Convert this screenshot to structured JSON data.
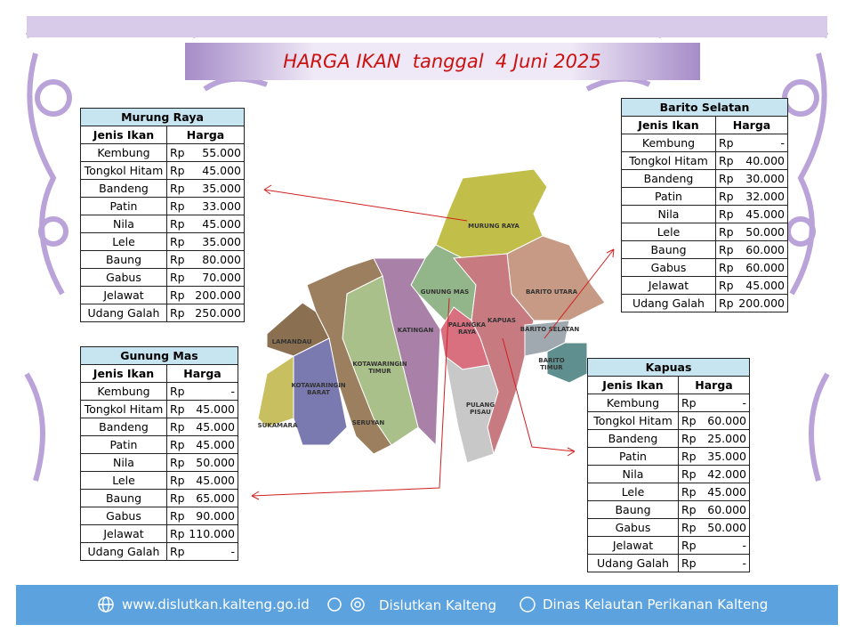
{
  "banner": {
    "title": "HARGA IKAN  tanggal  4 Juni 2025"
  },
  "tables": [
    {
      "title": "Murung Raya",
      "headers": [
        "Jenis Ikan",
        "Harga"
      ],
      "rows": [
        {
          "fish": "Kembung",
          "currency": "Rp",
          "price": "55.000"
        },
        {
          "fish": "Tongkol Hitam",
          "currency": "Rp",
          "price": "45.000"
        },
        {
          "fish": "Bandeng",
          "currency": "Rp",
          "price": "35.000"
        },
        {
          "fish": "Patin",
          "currency": "Rp",
          "price": "33.000"
        },
        {
          "fish": "Nila",
          "currency": "Rp",
          "price": "45.000"
        },
        {
          "fish": "Lele",
          "currency": "Rp",
          "price": "35.000"
        },
        {
          "fish": "Baung",
          "currency": "Rp",
          "price": "80.000"
        },
        {
          "fish": "Gabus",
          "currency": "Rp",
          "price": "70.000"
        },
        {
          "fish": "Jelawat",
          "currency": "Rp",
          "price": "200.000"
        },
        {
          "fish": "Udang Galah",
          "currency": "Rp",
          "price": "250.000"
        }
      ]
    },
    {
      "title": "Gunung Mas",
      "headers": [
        "Jenis Ikan",
        "Harga"
      ],
      "rows": [
        {
          "fish": "Kembung",
          "currency": "Rp",
          "price": "-"
        },
        {
          "fish": "Tongkol Hitam",
          "currency": "Rp",
          "price": "45.000"
        },
        {
          "fish": "Bandeng",
          "currency": "Rp",
          "price": "45.000"
        },
        {
          "fish": "Patin",
          "currency": "Rp",
          "price": "45.000"
        },
        {
          "fish": "Nila",
          "currency": "Rp",
          "price": "50.000"
        },
        {
          "fish": "Lele",
          "currency": "Rp",
          "price": "45.000"
        },
        {
          "fish": "Baung",
          "currency": "Rp",
          "price": "65.000"
        },
        {
          "fish": "Gabus",
          "currency": "Rp",
          "price": "90.000"
        },
        {
          "fish": "Jelawat",
          "currency": "Rp",
          "price": "110.000"
        },
        {
          "fish": "Udang Galah",
          "currency": "Rp",
          "price": "-"
        }
      ]
    },
    {
      "title": "Barito Selatan",
      "headers": [
        "Jenis Ikan",
        "Harga"
      ],
      "rows": [
        {
          "fish": "Kembung",
          "currency": "Rp",
          "price": "-"
        },
        {
          "fish": "Tongkol Hitam",
          "currency": "Rp",
          "price": "40.000"
        },
        {
          "fish": "Bandeng",
          "currency": "Rp",
          "price": "30.000"
        },
        {
          "fish": "Patin",
          "currency": "Rp",
          "price": "32.000"
        },
        {
          "fish": "Nila",
          "currency": "Rp",
          "price": "45.000"
        },
        {
          "fish": "Lele",
          "currency": "Rp",
          "price": "50.000"
        },
        {
          "fish": "Baung",
          "currency": "Rp",
          "price": "60.000"
        },
        {
          "fish": "Gabus",
          "currency": "Rp",
          "price": "60.000"
        },
        {
          "fish": "Jelawat",
          "currency": "Rp",
          "price": "45.000"
        },
        {
          "fish": "Udang Galah",
          "currency": "Rp",
          "price": "200.000"
        }
      ]
    },
    {
      "title": "Kapuas",
      "headers": [
        "Jenis Ikan",
        "Harga"
      ],
      "rows": [
        {
          "fish": "Kembung",
          "currency": "Rp",
          "price": "-"
        },
        {
          "fish": "Tongkol Hitam",
          "currency": "Rp",
          "price": "60.000"
        },
        {
          "fish": "Bandeng",
          "currency": "Rp",
          "price": "25.000"
        },
        {
          "fish": "Patin",
          "currency": "Rp",
          "price": "35.000"
        },
        {
          "fish": "Nila",
          "currency": "Rp",
          "price": "42.000"
        },
        {
          "fish": "Lele",
          "currency": "Rp",
          "price": "45.000"
        },
        {
          "fish": "Baung",
          "currency": "Rp",
          "price": "60.000"
        },
        {
          "fish": "Gabus",
          "currency": "Rp",
          "price": "50.000"
        },
        {
          "fish": "Jelawat",
          "currency": "Rp",
          "price": "-"
        },
        {
          "fish": "Udang Galah",
          "currency": "Rp",
          "price": "-"
        }
      ]
    }
  ],
  "map": {
    "regions": [
      {
        "lines": [
          "MURUNG RAYA"
        ]
      },
      {
        "lines": [
          "GUNUNG MAS"
        ]
      },
      {
        "lines": [
          "KATINGAN"
        ]
      },
      {
        "lines": [
          "PALANGKA",
          "RAYA"
        ]
      },
      {
        "lines": [
          "KAPUAS"
        ]
      },
      {
        "lines": [
          "BARITO UTARA"
        ]
      },
      {
        "lines": [
          "BARITO SELATAN"
        ]
      },
      {
        "lines": [
          "BARITO",
          "TIMUR"
        ]
      },
      {
        "lines": [
          "LAMANDAU"
        ]
      },
      {
        "lines": [
          "KOTAWARINGIN",
          "BARAT"
        ]
      },
      {
        "lines": [
          "KOTAWARINGIN",
          "TIMUR"
        ]
      },
      {
        "lines": [
          "SERUYAN"
        ]
      },
      {
        "lines": [
          "SUKAMARA"
        ]
      },
      {
        "lines": [
          "PULANG",
          "PISAU"
        ]
      }
    ]
  },
  "footer": {
    "website": "www.dislutkan.kalteng.go.id",
    "social": "Dislutkan Kalteng",
    "facebook": "Dinas Kelautan Perikanan Kalteng"
  }
}
